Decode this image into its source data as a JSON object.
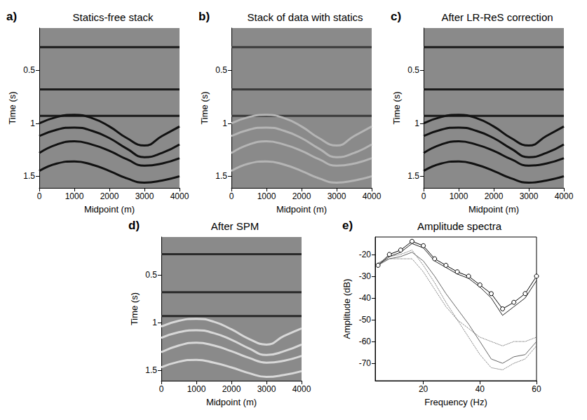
{
  "chart_data": [
    {
      "type": "line",
      "panel": "a)",
      "title": "Statics-free stack",
      "x_label": "Midpoint (m)",
      "y_label": "Time (s)",
      "xlim": [
        0,
        4000
      ],
      "xticks": [
        0,
        1000,
        2000,
        3000,
        4000
      ],
      "ylim": [
        1.61,
        0.1
      ],
      "yticks": [
        0.5,
        1,
        1.5
      ],
      "series": [
        {
          "color": "#1a1a1a",
          "x": [
            0,
            4000
          ],
          "values": [
            0.28,
            0.28
          ]
        },
        {
          "color": "#1a1a1a",
          "x": [
            0,
            4000
          ],
          "values": [
            0.68,
            0.68
          ]
        },
        {
          "color": "#1a1a1a",
          "x": [
            0,
            4000
          ],
          "values": [
            0.93,
            0.93
          ]
        },
        {
          "color": "#111111",
          "x": [
            0,
            500,
            1000,
            1500,
            2000,
            2500,
            3000,
            3500,
            4000
          ],
          "values": [
            1.0,
            0.94,
            0.92,
            0.95,
            1.03,
            1.14,
            1.21,
            1.12,
            1.03
          ]
        },
        {
          "color": "#111111",
          "x": [
            0,
            500,
            1000,
            1500,
            2000,
            2500,
            3000,
            3500,
            4000
          ],
          "values": [
            1.12,
            1.06,
            1.04,
            1.07,
            1.14,
            1.24,
            1.32,
            1.28,
            1.2
          ]
        },
        {
          "color": "#111111",
          "x": [
            0,
            500,
            1000,
            1500,
            2000,
            2500,
            3000,
            3500,
            4000
          ],
          "values": [
            1.28,
            1.2,
            1.17,
            1.2,
            1.26,
            1.34,
            1.4,
            1.38,
            1.33
          ]
        },
        {
          "color": "#111111",
          "x": [
            0,
            500,
            1000,
            1500,
            2000,
            2500,
            3000,
            3500,
            4000
          ],
          "values": [
            1.45,
            1.38,
            1.36,
            1.39,
            1.45,
            1.52,
            1.56,
            1.54,
            1.5
          ]
        }
      ]
    },
    {
      "type": "line",
      "panel": "b)",
      "title": "Stack of data with statics",
      "x_label": "Midpoint (m)",
      "y_label": "Time (s)",
      "xlim": [
        0,
        4000
      ],
      "xticks": [
        0,
        1000,
        2000,
        3000,
        4000
      ],
      "ylim": [
        1.61,
        0.1
      ],
      "yticks": [
        0.5,
        1,
        1.5
      ],
      "series": [
        {
          "color": "#3a3a3a",
          "x": [
            0,
            4000
          ],
          "values": [
            0.28,
            0.28
          ]
        },
        {
          "color": "#3a3a3a",
          "x": [
            0,
            4000
          ],
          "values": [
            0.68,
            0.68
          ]
        },
        {
          "color": "#3a3a3a",
          "x": [
            0,
            4000
          ],
          "values": [
            0.93,
            0.93
          ]
        },
        {
          "color": "#b5b5b5",
          "x": [
            0,
            500,
            1000,
            1500,
            2000,
            2500,
            3000,
            3500,
            4000
          ],
          "values": [
            1.0,
            0.94,
            0.92,
            0.95,
            1.03,
            1.14,
            1.21,
            1.12,
            1.03
          ]
        },
        {
          "color": "#b5b5b5",
          "x": [
            0,
            500,
            1000,
            1500,
            2000,
            2500,
            3000,
            3500,
            4000
          ],
          "values": [
            1.12,
            1.06,
            1.04,
            1.07,
            1.14,
            1.24,
            1.32,
            1.28,
            1.2
          ]
        },
        {
          "color": "#b5b5b5",
          "x": [
            0,
            500,
            1000,
            1500,
            2000,
            2500,
            3000,
            3500,
            4000
          ],
          "values": [
            1.28,
            1.2,
            1.17,
            1.2,
            1.26,
            1.34,
            1.4,
            1.38,
            1.33
          ]
        },
        {
          "color": "#b5b5b5",
          "x": [
            0,
            500,
            1000,
            1500,
            2000,
            2500,
            3000,
            3500,
            4000
          ],
          "values": [
            1.45,
            1.38,
            1.36,
            1.39,
            1.45,
            1.52,
            1.56,
            1.54,
            1.5
          ]
        }
      ]
    },
    {
      "type": "line",
      "panel": "c)",
      "title": "After LR-ReS correction",
      "x_label": "Midpoint (m)",
      "y_label": "Time (s)",
      "xlim": [
        0,
        4000
      ],
      "xticks": [
        0,
        1000,
        2000,
        3000,
        4000
      ],
      "ylim": [
        1.61,
        0.1
      ],
      "yticks": [
        0.5,
        1,
        1.5
      ],
      "series": [
        {
          "color": "#1a1a1a",
          "x": [
            0,
            4000
          ],
          "values": [
            0.28,
            0.28
          ]
        },
        {
          "color": "#1a1a1a",
          "x": [
            0,
            4000
          ],
          "values": [
            0.68,
            0.68
          ]
        },
        {
          "color": "#1a1a1a",
          "x": [
            0,
            4000
          ],
          "values": [
            0.93,
            0.93
          ]
        },
        {
          "color": "#111111",
          "x": [
            0,
            500,
            1000,
            1500,
            2000,
            2500,
            3000,
            3500,
            4000
          ],
          "values": [
            1.0,
            0.94,
            0.92,
            0.95,
            1.03,
            1.14,
            1.21,
            1.12,
            1.03
          ]
        },
        {
          "color": "#111111",
          "x": [
            0,
            500,
            1000,
            1500,
            2000,
            2500,
            3000,
            3500,
            4000
          ],
          "values": [
            1.12,
            1.06,
            1.04,
            1.07,
            1.14,
            1.24,
            1.32,
            1.28,
            1.2
          ]
        },
        {
          "color": "#111111",
          "x": [
            0,
            500,
            1000,
            1500,
            2000,
            2500,
            3000,
            3500,
            4000
          ],
          "values": [
            1.28,
            1.2,
            1.17,
            1.2,
            1.26,
            1.34,
            1.4,
            1.38,
            1.33
          ]
        },
        {
          "color": "#111111",
          "x": [
            0,
            500,
            1000,
            1500,
            2000,
            2500,
            3000,
            3500,
            4000
          ],
          "values": [
            1.45,
            1.38,
            1.36,
            1.39,
            1.45,
            1.52,
            1.56,
            1.54,
            1.5
          ]
        }
      ]
    },
    {
      "type": "line",
      "panel": "d)",
      "title": "After SPM",
      "x_label": "Midpoint (m)",
      "y_label": "Time (s)",
      "xlim": [
        0,
        4000
      ],
      "xticks": [
        0,
        1000,
        2000,
        3000,
        4000
      ],
      "ylim": [
        1.61,
        0.1
      ],
      "yticks": [
        0.5,
        1,
        1.5
      ],
      "series": [
        {
          "color": "#2a2a2a",
          "x": [
            0,
            4000
          ],
          "values": [
            0.28,
            0.28
          ]
        },
        {
          "color": "#2a2a2a",
          "x": [
            0,
            4000
          ],
          "values": [
            0.68,
            0.68
          ]
        },
        {
          "color": "#2a2a2a",
          "x": [
            0,
            4000
          ],
          "values": [
            0.93,
            0.93
          ]
        },
        {
          "color": "#d8d8d8",
          "x": [
            0,
            500,
            1000,
            1500,
            2000,
            2500,
            3000,
            3500,
            4000
          ],
          "values": [
            1.04,
            0.98,
            0.96,
            0.99,
            1.07,
            1.17,
            1.23,
            1.14,
            1.06
          ]
        },
        {
          "color": "#d8d8d8",
          "x": [
            0,
            500,
            1000,
            1500,
            2000,
            2500,
            3000,
            3500,
            4000
          ],
          "values": [
            1.16,
            1.1,
            1.08,
            1.11,
            1.18,
            1.27,
            1.34,
            1.3,
            1.23
          ]
        },
        {
          "color": "#d8d8d8",
          "x": [
            0,
            500,
            1000,
            1500,
            2000,
            2500,
            3000,
            3500,
            4000
          ],
          "values": [
            1.31,
            1.24,
            1.21,
            1.24,
            1.3,
            1.37,
            1.42,
            1.4,
            1.35
          ]
        },
        {
          "color": "#d8d8d8",
          "x": [
            0,
            500,
            1000,
            1500,
            2000,
            2500,
            3000,
            3500,
            4000
          ],
          "values": [
            1.47,
            1.41,
            1.39,
            1.42,
            1.47,
            1.53,
            1.57,
            1.55,
            1.51
          ]
        }
      ]
    },
    {
      "type": "line",
      "panel": "e)",
      "title": "Amplitude spectra",
      "x_label": "Frequency (Hz)",
      "y_label": "Amplitude (dB)",
      "xlim": [
        3,
        60
      ],
      "xticks": [
        20,
        40,
        60
      ],
      "ylim": [
        -78,
        -12
      ],
      "yticks": [
        -70,
        -60,
        -50,
        -40,
        -30,
        -20
      ],
      "series": [
        {
          "color": "#000000",
          "marker": "circle",
          "line_style": "solid",
          "x": [
            4,
            8,
            12,
            16,
            20,
            24,
            28,
            32,
            36,
            40,
            44,
            48,
            52,
            56,
            60
          ],
          "values": [
            -25,
            -20,
            -18,
            -14,
            -16,
            -22,
            -25,
            -28,
            -30,
            -34,
            -38,
            -45,
            -42,
            -38,
            -30
          ]
        },
        {
          "color": "#222222",
          "line_style": "solid",
          "x": [
            4,
            8,
            12,
            16,
            20,
            24,
            28,
            32,
            36,
            40,
            44,
            48,
            52,
            56,
            60
          ],
          "values": [
            -25,
            -21,
            -19,
            -15,
            -17,
            -23,
            -26,
            -29,
            -31,
            -35,
            -40,
            -48,
            -44,
            -40,
            -32
          ]
        },
        {
          "color": "#555555",
          "line_style": "dotted",
          "x": [
            4,
            8,
            12,
            16,
            20,
            24,
            28,
            32,
            36,
            40,
            44,
            48,
            52,
            56,
            60
          ],
          "values": [
            -24,
            -21,
            -20,
            -18,
            -25,
            -33,
            -42,
            -50,
            -58,
            -66,
            -72,
            -73,
            -70,
            -68,
            -62
          ]
        },
        {
          "color": "#666666",
          "line_style": "solid",
          "x": [
            4,
            8,
            12,
            16,
            20,
            24,
            28,
            32,
            36,
            40,
            44,
            48,
            52,
            56,
            60
          ],
          "values": [
            -25,
            -22,
            -21,
            -19,
            -23,
            -30,
            -38,
            -45,
            -52,
            -60,
            -68,
            -70,
            -67,
            -66,
            -60
          ]
        },
        {
          "color": "#555555",
          "line_style": "dotted",
          "x": [
            4,
            8,
            12,
            16,
            20,
            24,
            28,
            32,
            36,
            40,
            44,
            48,
            52,
            56,
            60
          ],
          "values": [
            -24,
            -22,
            -22,
            -22,
            -28,
            -36,
            -44,
            -50,
            -54,
            -58,
            -60,
            -62,
            -60,
            -60,
            -58
          ]
        }
      ]
    }
  ]
}
